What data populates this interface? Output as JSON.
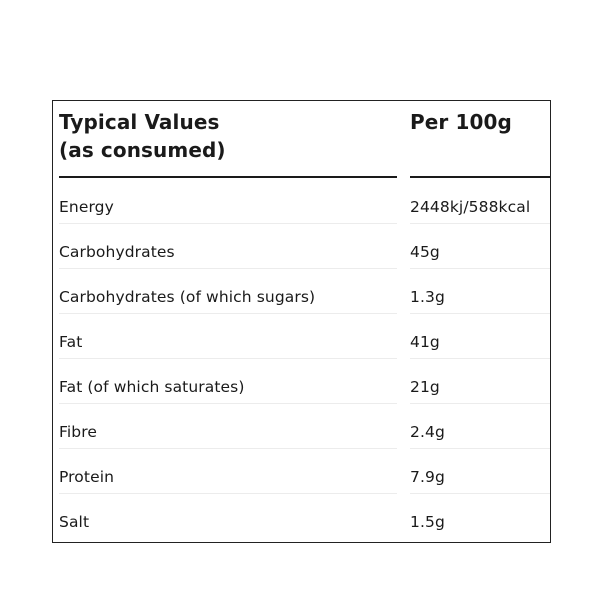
{
  "table": {
    "header_left_line1": "Typical Values",
    "header_left_line2": "(as consumed)",
    "header_right": "Per 100g",
    "rows": [
      {
        "label": "Energy",
        "value": "2448kj/588kcal"
      },
      {
        "label": "Carbohydrates",
        "value": "45g"
      },
      {
        "label": "Carbohydrates (of which sugars)",
        "value": "1.3g"
      },
      {
        "label": "Fat",
        "value": "41g"
      },
      {
        "label": "Fat (of which saturates)",
        "value": "21g"
      },
      {
        "label": "Fibre",
        "value": "2.4g"
      },
      {
        "label": "Protein",
        "value": "7.9g"
      },
      {
        "label": "Salt",
        "value": "1.5g"
      }
    ]
  }
}
